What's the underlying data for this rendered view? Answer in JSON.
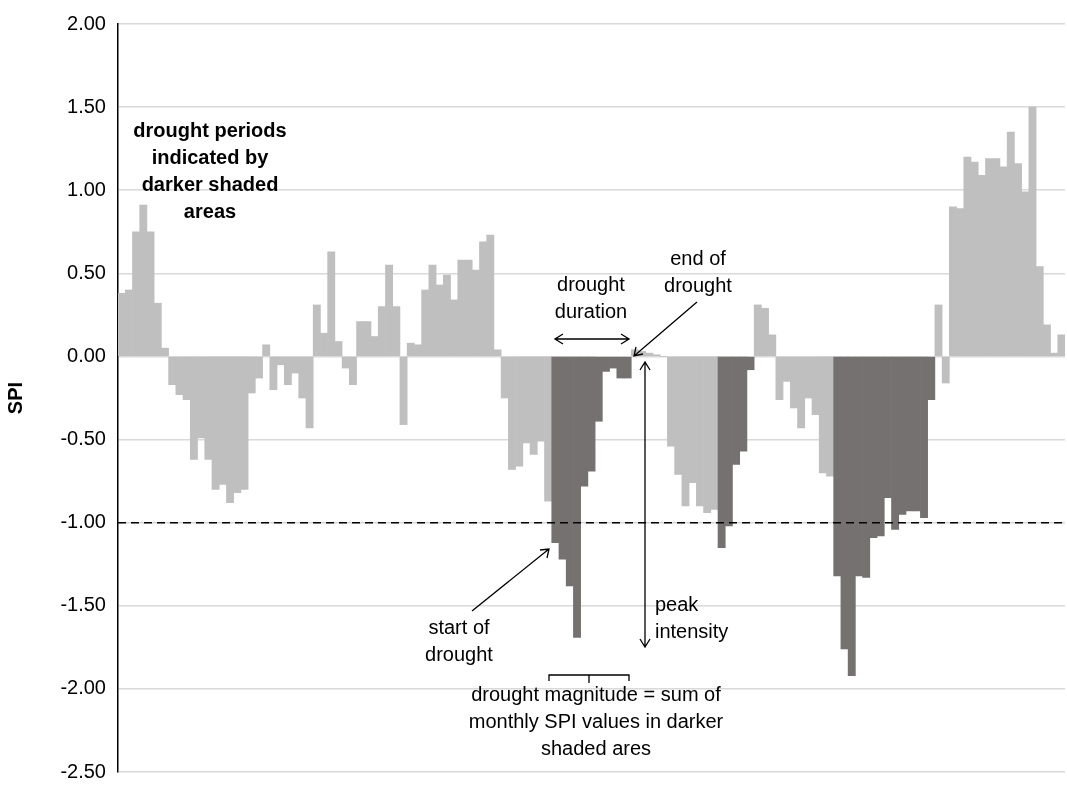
{
  "chart_data": {
    "type": "bar",
    "ylabel": "SPI",
    "categories": [
      null,
      null,
      null,
      null,
      null,
      null,
      null,
      null,
      null,
      null,
      null,
      null,
      null,
      null,
      null,
      null,
      null,
      null,
      null,
      null,
      null,
      null,
      null,
      null,
      null,
      null,
      null,
      null,
      null,
      null,
      null,
      null,
      null,
      null,
      null,
      null,
      null,
      null,
      null,
      null,
      null,
      null,
      null,
      null,
      null,
      null,
      null,
      null,
      null,
      null,
      null,
      null,
      null,
      null,
      null,
      null,
      null,
      null,
      null,
      null,
      null,
      null,
      null,
      null,
      null,
      null,
      null,
      null,
      null,
      null,
      null,
      null,
      null,
      null,
      null,
      null,
      null,
      null,
      null,
      null,
      null,
      null,
      null,
      null,
      null,
      null,
      null,
      null,
      null,
      null,
      null,
      null,
      null,
      null,
      null,
      null,
      null,
      null,
      null,
      null,
      null,
      null,
      null,
      null,
      null,
      null,
      null,
      null,
      null,
      null,
      null,
      null,
      null,
      null,
      null,
      null,
      null,
      null,
      null,
      null,
      null,
      null,
      null,
      null,
      null,
      null,
      null,
      null,
      null,
      null,
      null
    ],
    "values": [
      0.38,
      0.4,
      0.75,
      0.91,
      0.75,
      0.32,
      0.05,
      -0.17,
      -0.23,
      -0.26,
      -0.62,
      -0.49,
      -0.62,
      -0.8,
      -0.77,
      -0.88,
      -0.82,
      -0.8,
      -0.22,
      -0.13,
      0.07,
      -0.2,
      -0.05,
      -0.17,
      -0.1,
      -0.25,
      -0.43,
      0.31,
      0.14,
      0.63,
      0.09,
      -0.07,
      -0.17,
      0.21,
      0.21,
      0.12,
      0.3,
      0.55,
      0.3,
      -0.41,
      0.08,
      0.07,
      0.4,
      0.55,
      0.43,
      0.49,
      0.34,
      0.58,
      0.58,
      0.52,
      0.69,
      0.73,
      0.04,
      -0.25,
      -0.68,
      -0.66,
      -0.52,
      -0.59,
      -0.51,
      -0.87,
      -1.12,
      -1.22,
      -1.38,
      -1.69,
      -0.78,
      -0.69,
      -0.39,
      -0.09,
      -0.07,
      -0.13,
      -0.13,
      0.04,
      0.03,
      0.02,
      0.01,
      0.0,
      -0.54,
      -0.71,
      -0.9,
      -0.76,
      -0.9,
      -0.94,
      -0.92,
      -1.15,
      -1.02,
      -0.65,
      -0.57,
      -0.08,
      0.31,
      0.29,
      0.13,
      -0.26,
      -0.15,
      -0.31,
      -0.43,
      -0.25,
      -0.35,
      -0.7,
      -0.72,
      -1.32,
      -1.76,
      -1.92,
      -1.32,
      -1.33,
      -1.09,
      -1.08,
      -0.85,
      -1.04,
      -0.95,
      -0.93,
      -0.93,
      -0.97,
      -0.26,
      0.31,
      -0.16,
      0.9,
      0.89,
      1.2,
      1.17,
      1.09,
      1.19,
      1.19,
      1.14,
      1.35,
      1.16,
      0.99,
      1.5,
      0.54,
      0.19,
      0.02,
      0.13
    ],
    "colors": [
      "#bfbfbf",
      "#bfbfbf",
      "#bfbfbf",
      "#bfbfbf",
      "#bfbfbf",
      "#bfbfbf",
      "#bfbfbf",
      "#bfbfbf",
      "#bfbfbf",
      "#bfbfbf",
      "#bfbfbf",
      "#bfbfbf",
      "#bfbfbf",
      "#bfbfbf",
      "#bfbfbf",
      "#bfbfbf",
      "#bfbfbf",
      "#bfbfbf",
      "#bfbfbf",
      "#bfbfbf",
      "#bfbfbf",
      "#bfbfbf",
      "#bfbfbf",
      "#bfbfbf",
      "#bfbfbf",
      "#bfbfbf",
      "#bfbfbf",
      "#bfbfbf",
      "#bfbfbf",
      "#bfbfbf",
      "#bfbfbf",
      "#bfbfbf",
      "#bfbfbf",
      "#bfbfbf",
      "#bfbfbf",
      "#bfbfbf",
      "#bfbfbf",
      "#bfbfbf",
      "#bfbfbf",
      "#bfbfbf",
      "#bfbfbf",
      "#bfbfbf",
      "#bfbfbf",
      "#bfbfbf",
      "#bfbfbf",
      "#bfbfbf",
      "#bfbfbf",
      "#bfbfbf",
      "#bfbfbf",
      "#bfbfbf",
      "#bfbfbf",
      "#bfbfbf",
      "#bfbfbf",
      "#bfbfbf",
      "#bfbfbf",
      "#bfbfbf",
      "#bfbfbf",
      "#bfbfbf",
      "#bfbfbf",
      "#bfbfbf",
      "#767171",
      "#767171",
      "#767171",
      "#767171",
      "#767171",
      "#767171",
      "#767171",
      "#767171",
      "#767171",
      "#767171",
      "#767171",
      "#bfbfbf",
      "#bfbfbf",
      "#bfbfbf",
      "#bfbfbf",
      "#bfbfbf",
      "#bfbfbf",
      "#bfbfbf",
      "#bfbfbf",
      "#bfbfbf",
      "#bfbfbf",
      "#bfbfbf",
      "#bfbfbf",
      "#767171",
      "#767171",
      "#767171",
      "#767171",
      "#767171",
      "#bfbfbf",
      "#bfbfbf",
      "#bfbfbf",
      "#bfbfbf",
      "#bfbfbf",
      "#bfbfbf",
      "#bfbfbf",
      "#bfbfbf",
      "#bfbfbf",
      "#bfbfbf",
      "#bfbfbf",
      "#767171",
      "#767171",
      "#767171",
      "#767171",
      "#767171",
      "#767171",
      "#767171",
      "#767171",
      "#767171",
      "#767171",
      "#767171",
      "#767171",
      "#767171",
      "#767171",
      "#bfbfbf",
      "#bfbfbf",
      "#bfbfbf",
      "#bfbfbf",
      "#bfbfbf",
      "#bfbfbf",
      "#bfbfbf",
      "#bfbfbf",
      "#bfbfbf",
      "#bfbfbf",
      "#bfbfbf",
      "#bfbfbf",
      "#bfbfbf",
      "#bfbfbf",
      "#bfbfbf",
      "#bfbfbf",
      "#bfbfbf",
      "#bfbfbf"
    ],
    "ylim": [
      -2.5,
      2.0
    ],
    "yticks": [
      {
        "value": -2.5,
        "label": "-2.50"
      },
      {
        "value": -2.0,
        "label": "-2.00"
      },
      {
        "value": -1.5,
        "label": "-1.50"
      },
      {
        "value": -1.0,
        "label": "-1.00"
      },
      {
        "value": -0.5,
        "label": "-0.50"
      },
      {
        "value": 0,
        "label": "0.00"
      },
      {
        "value": 0.5,
        "label": "0.50"
      },
      {
        "value": 1.0,
        "label": "1.00"
      },
      {
        "value": 1.5,
        "label": "1.50"
      },
      {
        "value": 2.0,
        "label": "2.00"
      }
    ],
    "grid": "y",
    "tick_labels": "y",
    "ref_lines": [
      {
        "axis": "y",
        "value": -1.0,
        "label": null,
        "color": "#000000",
        "line_style": "dashed"
      }
    ],
    "annotations": [
      "drought periods indicated by darker shaded areas",
      "drought duration",
      "end of drought",
      "start of drought",
      "peak intensity",
      "drought magnitude = sum of monthly SPI values in darker shaded ares"
    ]
  }
}
